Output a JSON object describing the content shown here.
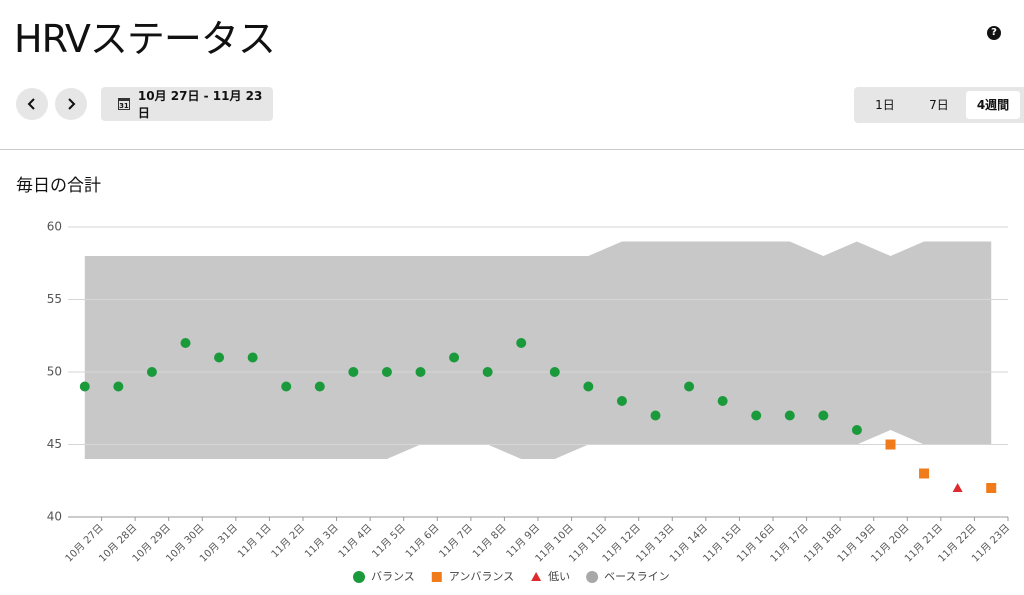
{
  "header": {
    "title": "HRVステータス",
    "help": "?",
    "date_range": "10月 27日 - 11月 23日",
    "calendar_icon_day": "31",
    "tabs": [
      "1日",
      "7日",
      "4週間"
    ],
    "selected_tab": "4週間"
  },
  "section_title": "毎日の合計",
  "chart_data": {
    "type": "scatter",
    "categories": [
      "10月 27日",
      "10月 28日",
      "10月 29日",
      "10月 30日",
      "10月 31日",
      "11月 1日",
      "11月 2日",
      "11月 3日",
      "11月 4日",
      "11月 5日",
      "11月 6日",
      "11月 7日",
      "11月 8日",
      "11月 9日",
      "11月 10日",
      "11月 11日",
      "11月 12日",
      "11月 13日",
      "11月 14日",
      "11月 15日",
      "11月 16日",
      "11月 17日",
      "11月 18日",
      "11月 19日",
      "11月 20日",
      "11月 21日",
      "11月 22日",
      "11月 23日"
    ],
    "series": [
      {
        "name": "バランス",
        "color": "#1b9a3c",
        "marker": "circle",
        "values": [
          49,
          49,
          50,
          52,
          51,
          51,
          49,
          49,
          50,
          50,
          50,
          51,
          50,
          52,
          50,
          49,
          48,
          47,
          49,
          48,
          47,
          47,
          47,
          46,
          null,
          null,
          null,
          null
        ]
      },
      {
        "name": "アンバランス",
        "color": "#f07b1a",
        "marker": "square",
        "values": [
          null,
          null,
          null,
          null,
          null,
          null,
          null,
          null,
          null,
          null,
          null,
          null,
          null,
          null,
          null,
          null,
          null,
          null,
          null,
          null,
          null,
          null,
          null,
          null,
          45,
          43,
          null,
          42
        ]
      },
      {
        "name": "低い",
        "color": "#de2a2f",
        "marker": "triangle",
        "values": [
          null,
          null,
          null,
          null,
          null,
          null,
          null,
          null,
          null,
          null,
          null,
          null,
          null,
          null,
          null,
          null,
          null,
          null,
          null,
          null,
          null,
          null,
          null,
          null,
          null,
          null,
          42,
          null
        ]
      }
    ],
    "baseline": {
      "name": "ベースライン",
      "color": "#c8c8c8",
      "legend_color": "#a8a8a8",
      "upper": [
        58,
        58,
        58,
        58,
        58,
        58,
        58,
        58,
        58,
        58,
        58,
        58,
        58,
        58,
        58,
        58,
        59,
        59,
        59,
        59,
        59,
        59,
        58,
        59,
        58,
        59,
        59,
        59
      ],
      "lower": [
        44,
        44,
        44,
        44,
        44,
        44,
        44,
        44,
        44,
        44,
        45,
        45,
        45,
        44,
        44,
        45,
        45,
        45,
        45,
        45,
        45,
        45,
        45,
        45,
        46,
        45,
        45,
        45
      ]
    },
    "ylim": [
      40,
      60
    ],
    "yticks": [
      40,
      45,
      50,
      55,
      60
    ],
    "grid": true,
    "legend": "bottom"
  }
}
